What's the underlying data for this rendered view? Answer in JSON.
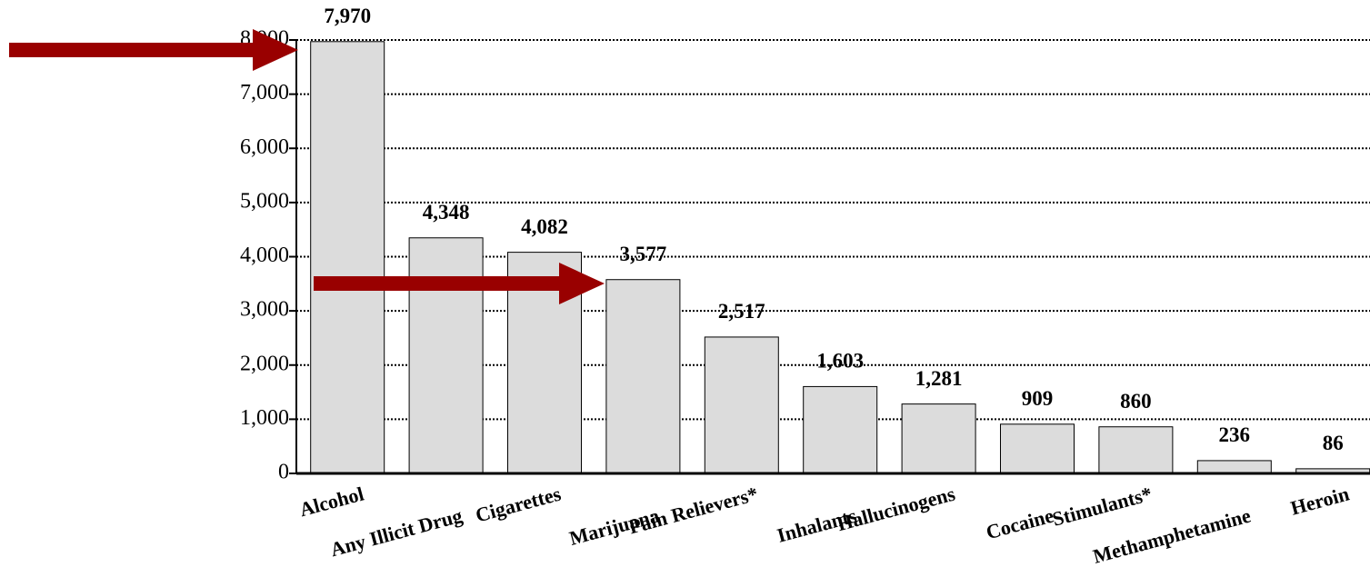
{
  "chart_data": {
    "type": "bar",
    "categories": [
      "Alcohol",
      "Any Illicit Drug",
      "Cigarettes",
      "Marijuana",
      "Pain Relievers*",
      "Inhalants",
      "Hallucinogens",
      "Cocaine",
      "Stimulants*",
      "Methamphetamine",
      "Heroin"
    ],
    "values": [
      7970,
      4348,
      4082,
      3577,
      2517,
      1603,
      1281,
      909,
      860,
      236,
      86
    ],
    "value_labels": [
      "7,970",
      "4,348",
      "4,082",
      "3,577",
      "2,517",
      "1,603",
      "1,281",
      "909",
      "860",
      "236",
      "86"
    ],
    "color": "#dcdcdc",
    "ylim": [
      0,
      8000
    ],
    "yticks": [
      0,
      {
        "value": 1000,
        "label": "1,000"
      },
      {
        "value": 2000,
        "label": "2,000"
      },
      {
        "value": 3000,
        "label": "3,000"
      },
      {
        "value": 4000,
        "label": "4,000"
      },
      {
        "value": 5000,
        "label": "5,000"
      },
      {
        "value": 6000,
        "label": "6,000"
      },
      {
        "value": 7000,
        "label": "7,000"
      },
      {
        "value": 8000,
        "label": "8,000"
      }
    ],
    "grid": true
  }
}
